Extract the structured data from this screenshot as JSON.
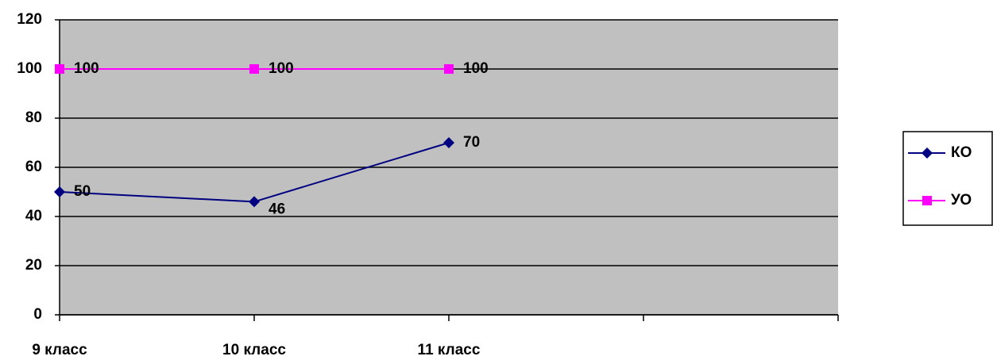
{
  "chart_data": {
    "type": "line",
    "categories": [
      "9 класс",
      "10 класс",
      "11 класс",
      null,
      null
    ],
    "series": [
      {
        "name": "КО",
        "color": "#000080",
        "marker": "diamond",
        "values": [
          50,
          46,
          70,
          null,
          null
        ]
      },
      {
        "name": "УО",
        "color": "#ff00ff",
        "marker": "square",
        "values": [
          100,
          100,
          100,
          null,
          null
        ]
      }
    ],
    "ylim": [
      0,
      120
    ],
    "yticks": [
      0,
      20,
      40,
      60,
      80,
      100,
      120
    ],
    "grid": true,
    "legend": "right"
  }
}
